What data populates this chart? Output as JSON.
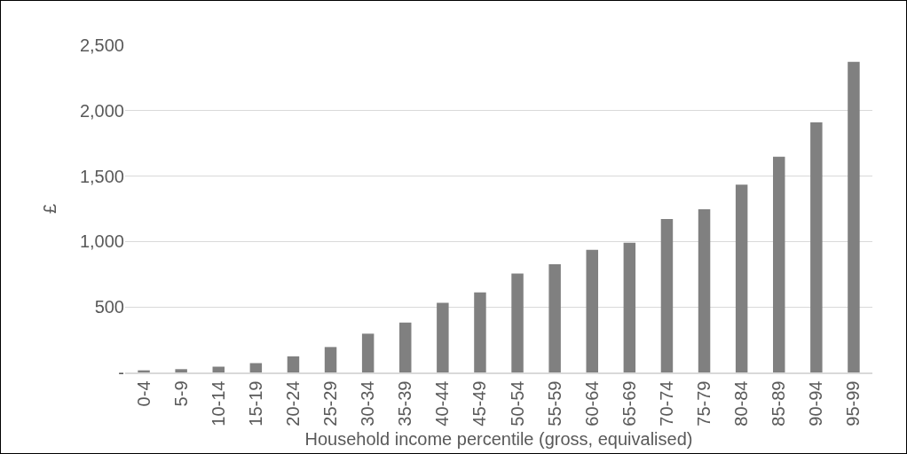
{
  "chart_data": {
    "type": "bar",
    "xlabel": "Household income percentile (gross, equivalised)",
    "ylabel": "£",
    "categories": [
      "0-4",
      "5-9",
      "10-14",
      "15-19",
      "20-24",
      "25-29",
      "30-34",
      "35-39",
      "40-44",
      "45-49",
      "50-54",
      "55-59",
      "60-64",
      "65-69",
      "70-74",
      "75-79",
      "80-84",
      "85-89",
      "90-94",
      "95-99"
    ],
    "values": [
      16,
      25,
      44,
      71,
      123,
      194,
      296,
      381,
      531,
      611,
      756,
      827,
      936,
      991,
      1172,
      1246,
      1435,
      1648,
      1911,
      2373
    ],
    "color": "#808080",
    "ylim": [
      0,
      2500
    ],
    "yticks": [
      {
        "value": 0,
        "label": "-"
      },
      {
        "value": 500,
        "label": "500"
      },
      {
        "value": 1000,
        "label": "1,000"
      },
      {
        "value": 1500,
        "label": "1,500"
      },
      {
        "value": 2000,
        "label": "2,000"
      },
      {
        "value": 2500,
        "label": "2,500"
      }
    ],
    "grid": "y"
  }
}
